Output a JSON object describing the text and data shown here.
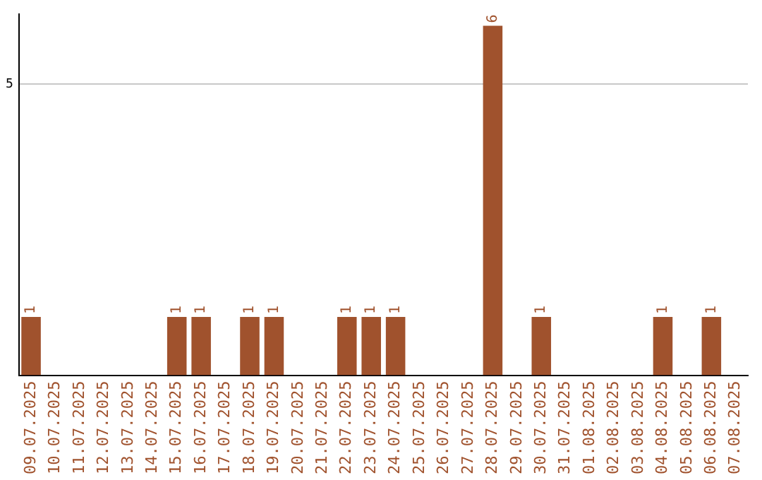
{
  "chart_data": {
    "type": "bar",
    "categories": [
      "09.07.2025",
      "10.07.2025",
      "11.07.2025",
      "12.07.2025",
      "13.07.2025",
      "14.07.2025",
      "15.07.2025",
      "16.07.2025",
      "17.07.2025",
      "18.07.2025",
      "19.07.2025",
      "20.07.2025",
      "21.07.2025",
      "22.07.2025",
      "23.07.2025",
      "24.07.2025",
      "25.07.2025",
      "26.07.2025",
      "27.07.2025",
      "28.07.2025",
      "29.07.2025",
      "30.07.2025",
      "31.07.2025",
      "01.08.2025",
      "02.08.2025",
      "03.08.2025",
      "04.08.2025",
      "05.08.2025",
      "06.08.2025",
      "07.08.2025"
    ],
    "values": [
      1,
      0,
      0,
      0,
      0,
      0,
      1,
      1,
      0,
      1,
      1,
      0,
      0,
      1,
      1,
      1,
      0,
      0,
      0,
      6,
      0,
      1,
      0,
      0,
      0,
      0,
      1,
      0,
      1,
      0
    ],
    "value_labels": [
      "1",
      null,
      null,
      null,
      null,
      null,
      "1",
      "1",
      null,
      "1",
      "1",
      null,
      null,
      "1",
      "1",
      "1",
      null,
      null,
      null,
      "6",
      null,
      "1",
      null,
      null,
      null,
      null,
      "1",
      null,
      "1",
      null
    ],
    "color": "#a0522d",
    "ylim": [
      0,
      6.2
    ],
    "yticks": [
      5
    ],
    "grid": "y",
    "legend": false
  }
}
